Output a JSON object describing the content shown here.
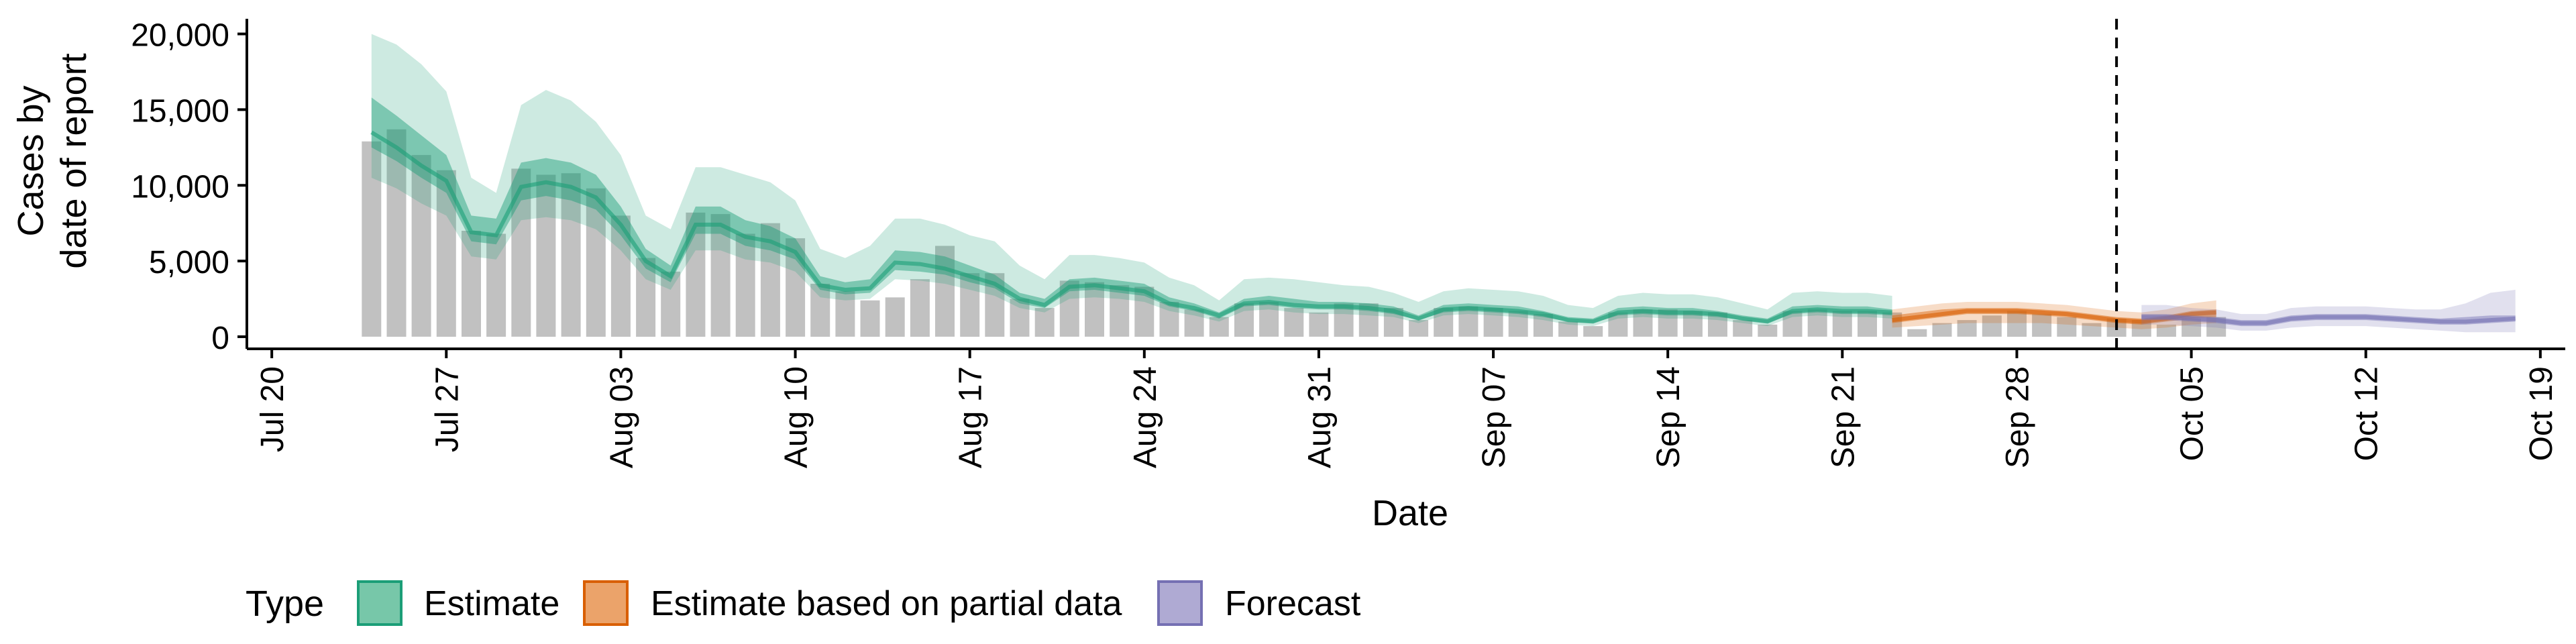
{
  "chart_data": {
    "type": "bar",
    "xlabel": "Date",
    "ylabel_lines": [
      "Cases by",
      "date of report"
    ],
    "x_tick_labels": [
      "Jul 20",
      "Jul 27",
      "Aug 03",
      "Aug 10",
      "Aug 17",
      "Aug 24",
      "Aug 31",
      "Sep 07",
      "Sep 14",
      "Sep 21",
      "Sep 28",
      "Oct 05",
      "Oct 12",
      "Oct 19"
    ],
    "x_tick_dates": [
      "2020-07-20",
      "2020-07-27",
      "2020-08-03",
      "2020-08-10",
      "2020-08-17",
      "2020-08-24",
      "2020-08-31",
      "2020-09-07",
      "2020-09-14",
      "2020-09-21",
      "2020-09-28",
      "2020-10-05",
      "2020-10-12",
      "2020-10-19"
    ],
    "xlim": [
      "2020-07-19",
      "2020-10-20"
    ],
    "y_ticks": [
      0,
      5000,
      10000,
      15000,
      20000
    ],
    "y_tick_labels": [
      "0",
      "5,000",
      "10,000",
      "15,000",
      "20,000"
    ],
    "ylim": [
      -800,
      21000
    ],
    "forecast_date": "2020-10-02",
    "legend": {
      "title": "Type",
      "position": "bottom",
      "items": [
        {
          "label": "Estimate",
          "fill": "#77c7a9",
          "stroke": "#1b9e77"
        },
        {
          "label": "Estimate based on partial data",
          "fill": "#eba36a",
          "stroke": "#d95f02"
        },
        {
          "label": "Forecast",
          "fill": "#afaad3",
          "stroke": "#7570b3"
        }
      ]
    },
    "colors": {
      "bars": "#bebebe",
      "estimate": "#1b9e77",
      "partial": "#d95f02",
      "forecast": "#7570b3"
    },
    "observed_cases": {
      "start_date": "2020-07-24",
      "values": [
        12900,
        13700,
        12000,
        11000,
        7000,
        6800,
        11100,
        10700,
        10800,
        9800,
        8000,
        5200,
        4300,
        8200,
        8100,
        6800,
        7500,
        6500,
        3500,
        3000,
        2400,
        2600,
        3800,
        6000,
        4200,
        4200,
        2500,
        1900,
        3700,
        3600,
        3400,
        3300,
        2300,
        1800,
        1300,
        2200,
        2300,
        1900,
        1600,
        2200,
        2200,
        1900,
        1100,
        1900,
        2000,
        1900,
        1700,
        1500,
        1000,
        700,
        1600,
        1800,
        1800,
        1700,
        1600,
        1100,
        800,
        1700,
        1800,
        1700,
        1700,
        1600,
        500,
        900,
        1100,
        1400,
        1700,
        1500,
        1300,
        900,
        1200,
        1100,
        800,
        1200,
        1300
      ]
    },
    "estimate": {
      "start_date": "2020-07-24",
      "median": [
        13500,
        12500,
        11300,
        10300,
        6900,
        6700,
        9900,
        10200,
        9900,
        9200,
        7400,
        5000,
        4000,
        7400,
        7400,
        6600,
        6300,
        5600,
        3400,
        3100,
        3200,
        4900,
        4800,
        4500,
        4000,
        3500,
        2500,
        2100,
        3300,
        3400,
        3200,
        3000,
        2200,
        1900,
        1400,
        2200,
        2300,
        2100,
        2000,
        2000,
        1900,
        1700,
        1200,
        1800,
        1900,
        1800,
        1700,
        1500,
        1100,
        1000,
        1600,
        1700,
        1600,
        1600,
        1500,
        1200,
        1000,
        1700,
        1800,
        1700,
        1700,
        1600
      ],
      "lower_50": [
        12500,
        11600,
        10500,
        9500,
        6300,
        6100,
        9000,
        9300,
        9000,
        8400,
        6700,
        4500,
        3600,
        6800,
        6800,
        6000,
        5700,
        5100,
        3100,
        2800,
        2900,
        4400,
        4300,
        4100,
        3600,
        3200,
        2200,
        1900,
        3000,
        3100,
        2900,
        2700,
        2000,
        1700,
        1200,
        2000,
        2100,
        1900,
        1800,
        1800,
        1700,
        1500,
        1100,
        1600,
        1700,
        1600,
        1500,
        1300,
        1000,
        900,
        1400,
        1500,
        1400,
        1400,
        1300,
        1100,
        900,
        1500,
        1600,
        1500,
        1500,
        1400
      ],
      "upper_50": [
        15800,
        14600,
        13300,
        12000,
        8000,
        7800,
        11500,
        11800,
        11500,
        10700,
        8600,
        5800,
        4700,
        8600,
        8600,
        7700,
        7300,
        6500,
        4000,
        3600,
        3800,
        5700,
        5600,
        5300,
        4700,
        4100,
        2900,
        2500,
        3800,
        3900,
        3700,
        3500,
        2600,
        2200,
        1600,
        2500,
        2700,
        2500,
        2300,
        2300,
        2200,
        2000,
        1400,
        2100,
        2200,
        2100,
        2000,
        1700,
        1300,
        1200,
        1900,
        2000,
        1900,
        1900,
        1700,
        1400,
        1200,
        2000,
        2100,
        2000,
        2000,
        1800
      ],
      "lower_90": [
        10500,
        9800,
        8800,
        8000,
        5300,
        5100,
        7700,
        7900,
        7700,
        7100,
        5700,
        3800,
        3100,
        5700,
        5700,
        5100,
        4900,
        4300,
        2600,
        2400,
        2500,
        3800,
        3700,
        3500,
        3100,
        2700,
        1900,
        1600,
        2500,
        2600,
        2500,
        2300,
        1700,
        1400,
        1000,
        1700,
        1800,
        1600,
        1500,
        1500,
        1400,
        1300,
        900,
        1400,
        1500,
        1400,
        1300,
        1100,
        800,
        700,
        1200,
        1300,
        1200,
        1200,
        1100,
        900,
        700,
        1300,
        1400,
        1300,
        1300,
        1200
      ],
      "upper_90": [
        20000,
        19300,
        18000,
        16200,
        10500,
        9500,
        15300,
        16300,
        15600,
        14200,
        12000,
        8000,
        7100,
        11200,
        11200,
        10700,
        10200,
        9000,
        5800,
        5200,
        6000,
        7800,
        7800,
        7400,
        6700,
        6300,
        4700,
        3800,
        5400,
        5400,
        5200,
        4900,
        3900,
        3400,
        2400,
        3800,
        3900,
        3800,
        3600,
        3400,
        3300,
        2900,
        2300,
        3000,
        3200,
        3100,
        3000,
        2700,
        2100,
        1900,
        2700,
        2900,
        2800,
        2800,
        2600,
        2200,
        1800,
        2900,
        3000,
        2900,
        2900,
        2700
      ]
    },
    "partial_estimate": {
      "start_date": "2020-09-23",
      "median": [
        1100,
        1300,
        1500,
        1700,
        1700,
        1700,
        1600,
        1500,
        1300,
        1100,
        1000,
        1200,
        1500,
        1600
      ],
      "lower_50": [
        900,
        1100,
        1300,
        1500,
        1500,
        1500,
        1400,
        1300,
        1100,
        900,
        800,
        1000,
        1200,
        1300
      ],
      "upper_50": [
        1400,
        1600,
        1800,
        1900,
        1900,
        1900,
        1800,
        1700,
        1500,
        1300,
        1200,
        1400,
        1700,
        1800
      ],
      "lower_90": [
        600,
        700,
        800,
        900,
        900,
        900,
        900,
        800,
        700,
        600,
        500,
        600,
        800,
        900
      ],
      "upper_90": [
        1800,
        2000,
        2200,
        2300,
        2300,
        2300,
        2200,
        2100,
        1900,
        1700,
        1600,
        1800,
        2200,
        2400
      ]
    },
    "forecast": {
      "start_date": "2020-10-03",
      "median": [
        1300,
        1300,
        1200,
        1100,
        900,
        900,
        1200,
        1300,
        1300,
        1300,
        1200,
        1100,
        1000,
        1000,
        1100,
        1200
      ],
      "lower_50": [
        1100,
        1100,
        1000,
        900,
        700,
        700,
        1000,
        1100,
        1100,
        1100,
        1000,
        900,
        800,
        800,
        900,
        1000
      ],
      "upper_50": [
        1500,
        1500,
        1400,
        1300,
        1100,
        1100,
        1400,
        1500,
        1500,
        1500,
        1400,
        1300,
        1200,
        1300,
        1400,
        1400
      ],
      "lower_90": [
        800,
        800,
        700,
        600,
        400,
        400,
        600,
        700,
        700,
        700,
        600,
        500,
        400,
        300,
        300,
        300
      ],
      "upper_90": [
        2100,
        2100,
        1900,
        1800,
        1500,
        1500,
        1900,
        2000,
        2000,
        2000,
        1900,
        1800,
        1800,
        2200,
        2900,
        3100
      ]
    }
  }
}
